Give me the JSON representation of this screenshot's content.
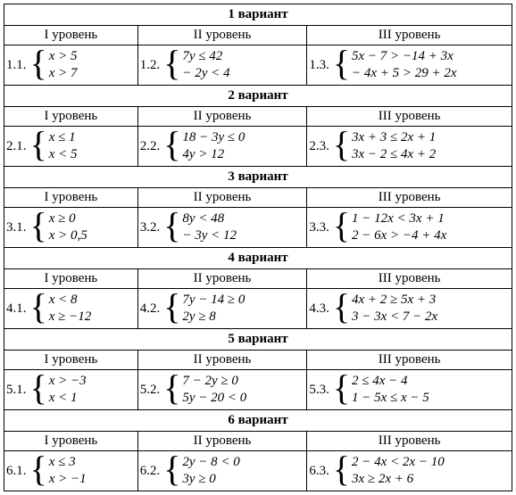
{
  "variants": [
    {
      "title": "1 вариант",
      "levels": [
        "I уровень",
        "II уровень",
        "III уровень"
      ],
      "cells": [
        {
          "num": "1.1.",
          "eq1": "x > 5",
          "eq2": "x > 7"
        },
        {
          "num": "1.2.",
          "eq1": "7y ≤ 42",
          "eq2": "− 2y < 4"
        },
        {
          "num": "1.3.",
          "eq1": "5x − 7 > −14 + 3x",
          "eq2": "− 4x + 5 > 29 + 2x"
        }
      ]
    },
    {
      "title": "2 вариант",
      "levels": [
        "I уровень",
        "II уровень",
        "III уровень"
      ],
      "cells": [
        {
          "num": "2.1.",
          "eq1": "x ≤ 1",
          "eq2": "x < 5"
        },
        {
          "num": "2.2.",
          "eq1": "18 − 3y ≤ 0",
          "eq2": "4y > 12"
        },
        {
          "num": "2.3.",
          "eq1": "3x + 3 ≤ 2x + 1",
          "eq2": "3x − 2 ≤ 4x + 2"
        }
      ]
    },
    {
      "title": "3 вариант",
      "levels": [
        "I уровень",
        "II уровень",
        "III уровень"
      ],
      "cells": [
        {
          "num": "3.1.",
          "eq1": "x ≥ 0",
          "eq2": "x > 0,5"
        },
        {
          "num": "3.2.",
          "eq1": "8y < 48",
          "eq2": "− 3y < 12"
        },
        {
          "num": "3.3.",
          "eq1": "1 − 12x < 3x + 1",
          "eq2": "2 − 6x > −4 + 4x"
        }
      ]
    },
    {
      "title": "4 вариант",
      "levels": [
        "I уровень",
        "II уровень",
        "III уровень"
      ],
      "cells": [
        {
          "num": "4.1.",
          "eq1": "x < 8",
          "eq2": "x ≥ −12"
        },
        {
          "num": "4.2.",
          "eq1": "7y − 14 ≥ 0",
          "eq2": "2y ≥ 8"
        },
        {
          "num": "4.3.",
          "eq1": "4x + 2 ≥ 5x + 3",
          "eq2": "3 − 3x < 7 − 2x"
        }
      ]
    },
    {
      "title": "5 вариант",
      "levels": [
        "I уровень",
        "II уровень",
        "III уровень"
      ],
      "cells": [
        {
          "num": "5.1.",
          "eq1": "x > −3",
          "eq2": "x < 1"
        },
        {
          "num": "5.2.",
          "eq1": "7 − 2y ≥ 0",
          "eq2": "5y − 20 < 0"
        },
        {
          "num": "5.3.",
          "eq1": "2 ≤ 4x − 4",
          "eq2": "1 − 5x ≤ x − 5"
        }
      ]
    },
    {
      "title": "6 вариант",
      "levels": [
        "I уровень",
        "II уровень",
        "III уровень"
      ],
      "cells": [
        {
          "num": "6.1.",
          "eq1": "x ≤ 3",
          "eq2": "x > −1"
        },
        {
          "num": "6.2.",
          "eq1": "2y − 8 < 0",
          "eq2": "3y ≥ 0"
        },
        {
          "num": "6.3.",
          "eq1": "2 − 4x < 2x − 10",
          "eq2": "3x ≥ 2x + 6"
        }
      ]
    }
  ],
  "col_widths": [
    "150px",
    "190px",
    "230px"
  ]
}
